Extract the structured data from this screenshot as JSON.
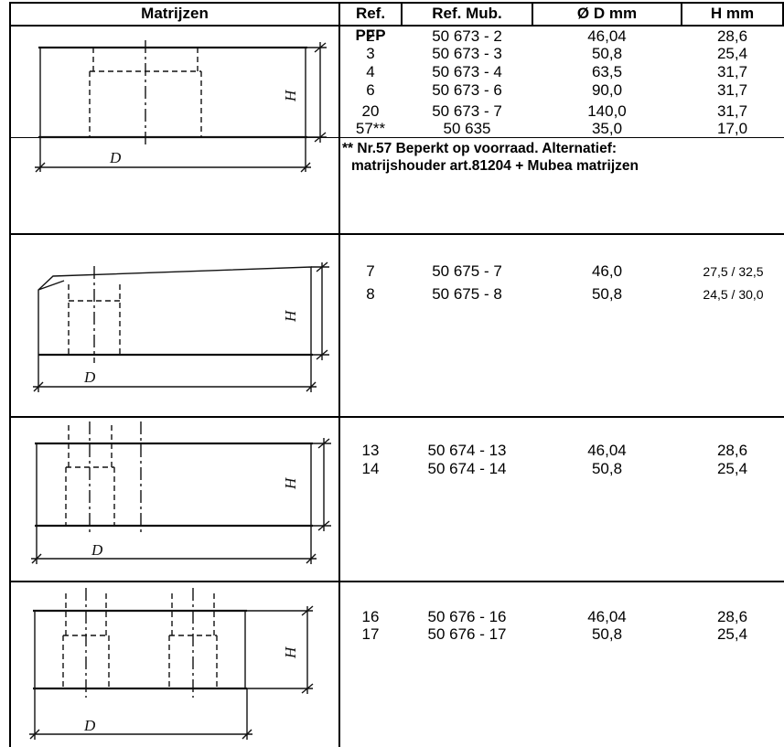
{
  "header": {
    "matrijzen": "Matrijzen",
    "ref_pfp": "Ref. PFP",
    "ref_mub": "Ref. Mub.",
    "diameter": "Ø D mm",
    "height": "H mm"
  },
  "dimension_labels": {
    "d": "D",
    "h": "H"
  },
  "groups": [
    {
      "rows": [
        {
          "pfp": "2",
          "mub": "50 673 - 2",
          "d": "46,04",
          "h": "28,6"
        },
        {
          "pfp": "3",
          "mub": "50 673 - 3",
          "d": "50,8",
          "h": "25,4"
        },
        {
          "pfp": "4",
          "mub": "50 673 - 4",
          "d": "63,5",
          "h": "31,7"
        },
        {
          "pfp": "6",
          "mub": "50 673 - 6",
          "d": "90,0",
          "h": "31,7"
        },
        {
          "pfp": "20",
          "mub": "50 673 - 7",
          "d": "140,0",
          "h": "31,7"
        },
        {
          "pfp": "57**",
          "mub": "50 635",
          "d": "35,0",
          "h": "17,0"
        }
      ],
      "note_line1": "** Nr.57 Beperkt op voorraad. Alternatief:",
      "note_line2": "matrijshouder art.81204 + Mubea matrijzen"
    },
    {
      "rows": [
        {
          "pfp": "7",
          "mub": "50 675 - 7",
          "d": "46,0",
          "h": "27,5 / 32,5"
        },
        {
          "pfp": "8",
          "mub": "50 675 - 8",
          "d": "50,8",
          "h": "24,5 / 30,0"
        }
      ]
    },
    {
      "rows": [
        {
          "pfp": "13",
          "mub": "50 674 - 13",
          "d": "46,04",
          "h": "28,6"
        },
        {
          "pfp": "14",
          "mub": "50 674 - 14",
          "d": "50,8",
          "h": "25,4"
        }
      ]
    },
    {
      "rows": [
        {
          "pfp": "16",
          "mub": "50 676 - 16",
          "d": "46,04",
          "h": "28,6"
        },
        {
          "pfp": "17",
          "mub": "50 676 - 17",
          "d": "50,8",
          "h": "25,4"
        }
      ]
    }
  ]
}
